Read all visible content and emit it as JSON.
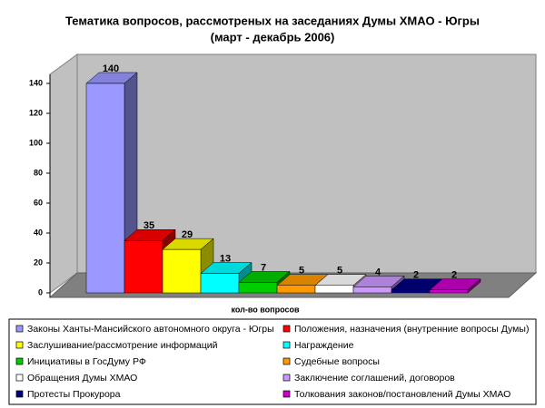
{
  "chart_data": {
    "type": "bar3d",
    "title": "Тематика вопросов, рассмотреных на заседаниях Думы ХМАО - Югры",
    "subtitle": "(март - декабрь 2006)",
    "categories": [
      "кол-во вопросов"
    ],
    "ylim": [
      0,
      140
    ],
    "yticks": [
      0,
      20,
      40,
      60,
      80,
      100,
      120,
      140
    ],
    "series": [
      {
        "name": "Законы Ханты-Мансийского автономного округа - Югры",
        "color": "#9999ff",
        "values": [
          140
        ]
      },
      {
        "name": "Положения, назначения (внутренние вопросы Думы)",
        "color": "#ff0000",
        "values": [
          35
        ]
      },
      {
        "name": "Заслушивание/рассмотрение информаций",
        "color": "#ffff00",
        "values": [
          29
        ]
      },
      {
        "name": "Награждение",
        "color": "#00ffff",
        "values": [
          13
        ]
      },
      {
        "name": "Инициативы в ГосДуму РФ",
        "color": "#00cc00",
        "values": [
          7
        ]
      },
      {
        "name": "Судебные вопросы",
        "color": "#ff9900",
        "values": [
          5
        ]
      },
      {
        "name": "Обращения Думы ХМАО",
        "color": "#ffffff",
        "values": [
          5
        ]
      },
      {
        "name": "Заключение соглашений, договоров",
        "color": "#cc99ff",
        "values": [
          4
        ]
      },
      {
        "name": "Протесты Прокурора",
        "color": "#000080",
        "values": [
          2
        ]
      },
      {
        "name": "Толкования законов/постановлений Думы ХМАО",
        "color": "#cc00cc",
        "values": [
          2
        ]
      }
    ]
  }
}
